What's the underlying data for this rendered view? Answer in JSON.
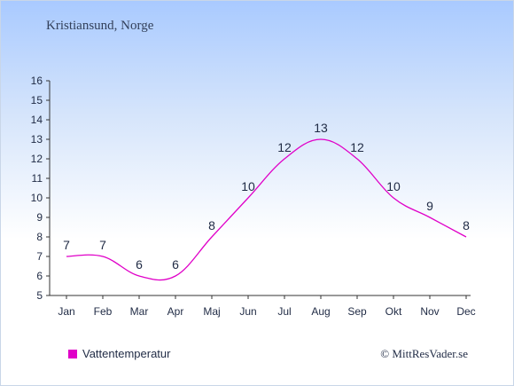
{
  "header": {
    "location": "Kristiansund, Norge"
  },
  "legend": {
    "label": "Vattentemperatur"
  },
  "credit": "© MittResVader.se",
  "colors": {
    "series": "#e000c8",
    "axis": "#333333",
    "text": "#1f2a44"
  },
  "chart_data": {
    "type": "line",
    "categories": [
      "Jan",
      "Feb",
      "Mar",
      "Apr",
      "Maj",
      "Jun",
      "Jul",
      "Aug",
      "Sep",
      "Okt",
      "Nov",
      "Dec"
    ],
    "series": [
      {
        "name": "Vattentemperatur",
        "values": [
          7,
          7,
          6,
          6,
          8,
          10,
          12,
          13,
          12,
          10,
          9,
          8
        ]
      }
    ],
    "ylim": [
      5,
      16
    ],
    "yticks": [
      5,
      6,
      7,
      8,
      9,
      10,
      11,
      12,
      13,
      14,
      15,
      16
    ],
    "grid": false,
    "legend_position": "bottom-left"
  }
}
